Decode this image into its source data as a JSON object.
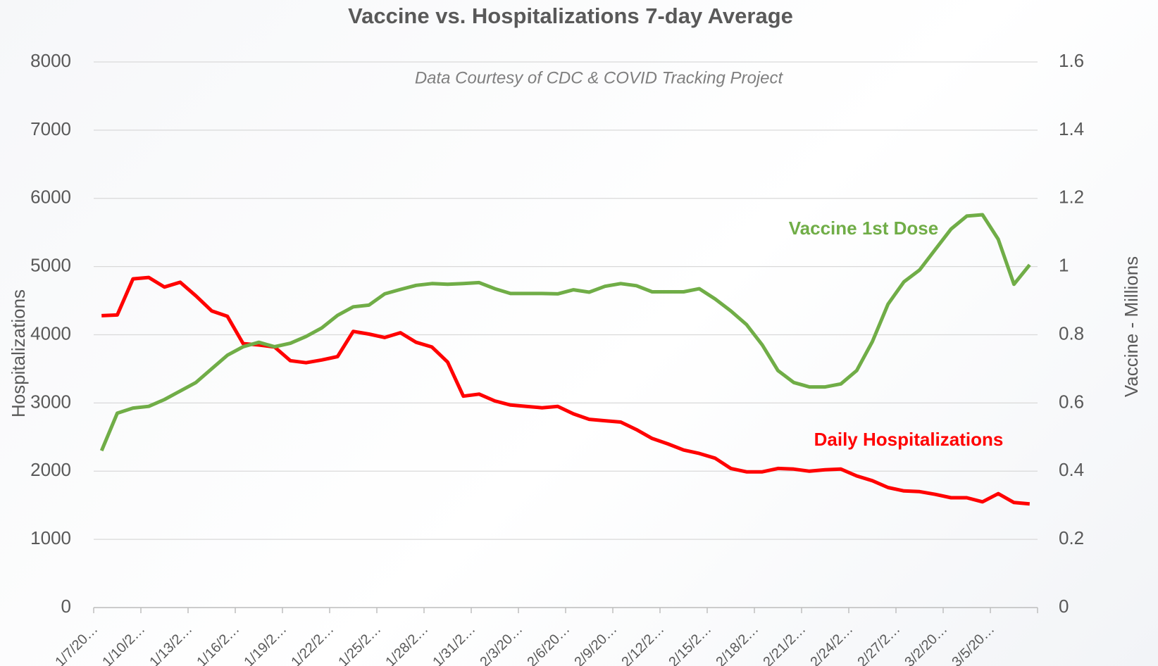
{
  "chart_data": {
    "type": "line",
    "title": "Vaccine vs. Hospitalizations 7-day Average",
    "subtitle": "Data Courtesy of CDC & COVID Tracking Project",
    "y_label": "Hospitalizations",
    "y2_label": "Vaccine - Millions",
    "categories": [
      "1/7/20…",
      null,
      null,
      "1/10/2…",
      null,
      null,
      "1/13/2…",
      null,
      null,
      "1/16/2…",
      null,
      null,
      "1/19/2…",
      null,
      null,
      "1/22/2…",
      null,
      null,
      "1/25/2…",
      null,
      null,
      "1/28/2…",
      null,
      null,
      "1/31/2…",
      null,
      null,
      "2/3/20…",
      null,
      null,
      "2/6/20…",
      null,
      null,
      "2/9/20…",
      null,
      null,
      "2/12/2…",
      null,
      null,
      "2/15/2…",
      null,
      null,
      "2/18/2…",
      null,
      null,
      "2/21/2…",
      null,
      null,
      "2/24/2…",
      null,
      null,
      "2/27/2…",
      null,
      null,
      "3/2/20…",
      null,
      null,
      "3/5/20…",
      null,
      null
    ],
    "series": [
      {
        "name": "Daily Hospitalizations",
        "color": "#ff0000",
        "axis": "y",
        "values": [
          4280,
          4290,
          4820,
          4840,
          4700,
          4770,
          4570,
          4350,
          4270,
          3870,
          3850,
          3820,
          3620,
          3590,
          3630,
          3680,
          4050,
          4010,
          3960,
          4030,
          3890,
          3820,
          3600,
          3100,
          3130,
          3030,
          2970,
          2950,
          2930,
          2950,
          2840,
          2760,
          2740,
          2720,
          2610,
          2480,
          2400,
          2310,
          2260,
          2190,
          2040,
          1990,
          1990,
          2040,
          2030,
          2000,
          2020,
          2030,
          1930,
          1860,
          1760,
          1710,
          1700,
          1660,
          1610,
          1610,
          1550,
          1670,
          1540,
          1520
        ]
      },
      {
        "name": "Vaccine 1st Dose",
        "color": "#70ad47",
        "axis": "y2",
        "values": [
          0.46,
          0.57,
          0.585,
          0.59,
          0.61,
          0.635,
          0.66,
          0.7,
          0.74,
          0.765,
          0.778,
          0.765,
          0.775,
          0.795,
          0.82,
          0.857,
          0.882,
          0.887,
          0.92,
          0.933,
          0.945,
          0.95,
          0.948,
          0.95,
          0.953,
          0.935,
          0.921,
          0.921,
          0.921,
          0.92,
          0.932,
          0.925,
          0.942,
          0.95,
          0.944,
          0.926,
          0.926,
          0.926,
          0.935,
          0.905,
          0.87,
          0.83,
          0.77,
          0.695,
          0.66,
          0.647,
          0.647,
          0.656,
          0.695,
          0.78,
          0.89,
          0.955,
          0.99,
          1.05,
          1.11,
          1.148,
          1.152,
          1.08,
          0.948,
          1.005
        ]
      }
    ],
    "ylim": [
      0,
      8000
    ],
    "yticks": [
      0,
      1000,
      2000,
      3000,
      4000,
      5000,
      6000,
      7000,
      8000
    ],
    "y2lim": [
      0,
      1.6
    ],
    "y2ticks": [
      0,
      0.2,
      0.4,
      0.6,
      0.8,
      1,
      1.2,
      1.4,
      1.6
    ],
    "grid": true
  }
}
